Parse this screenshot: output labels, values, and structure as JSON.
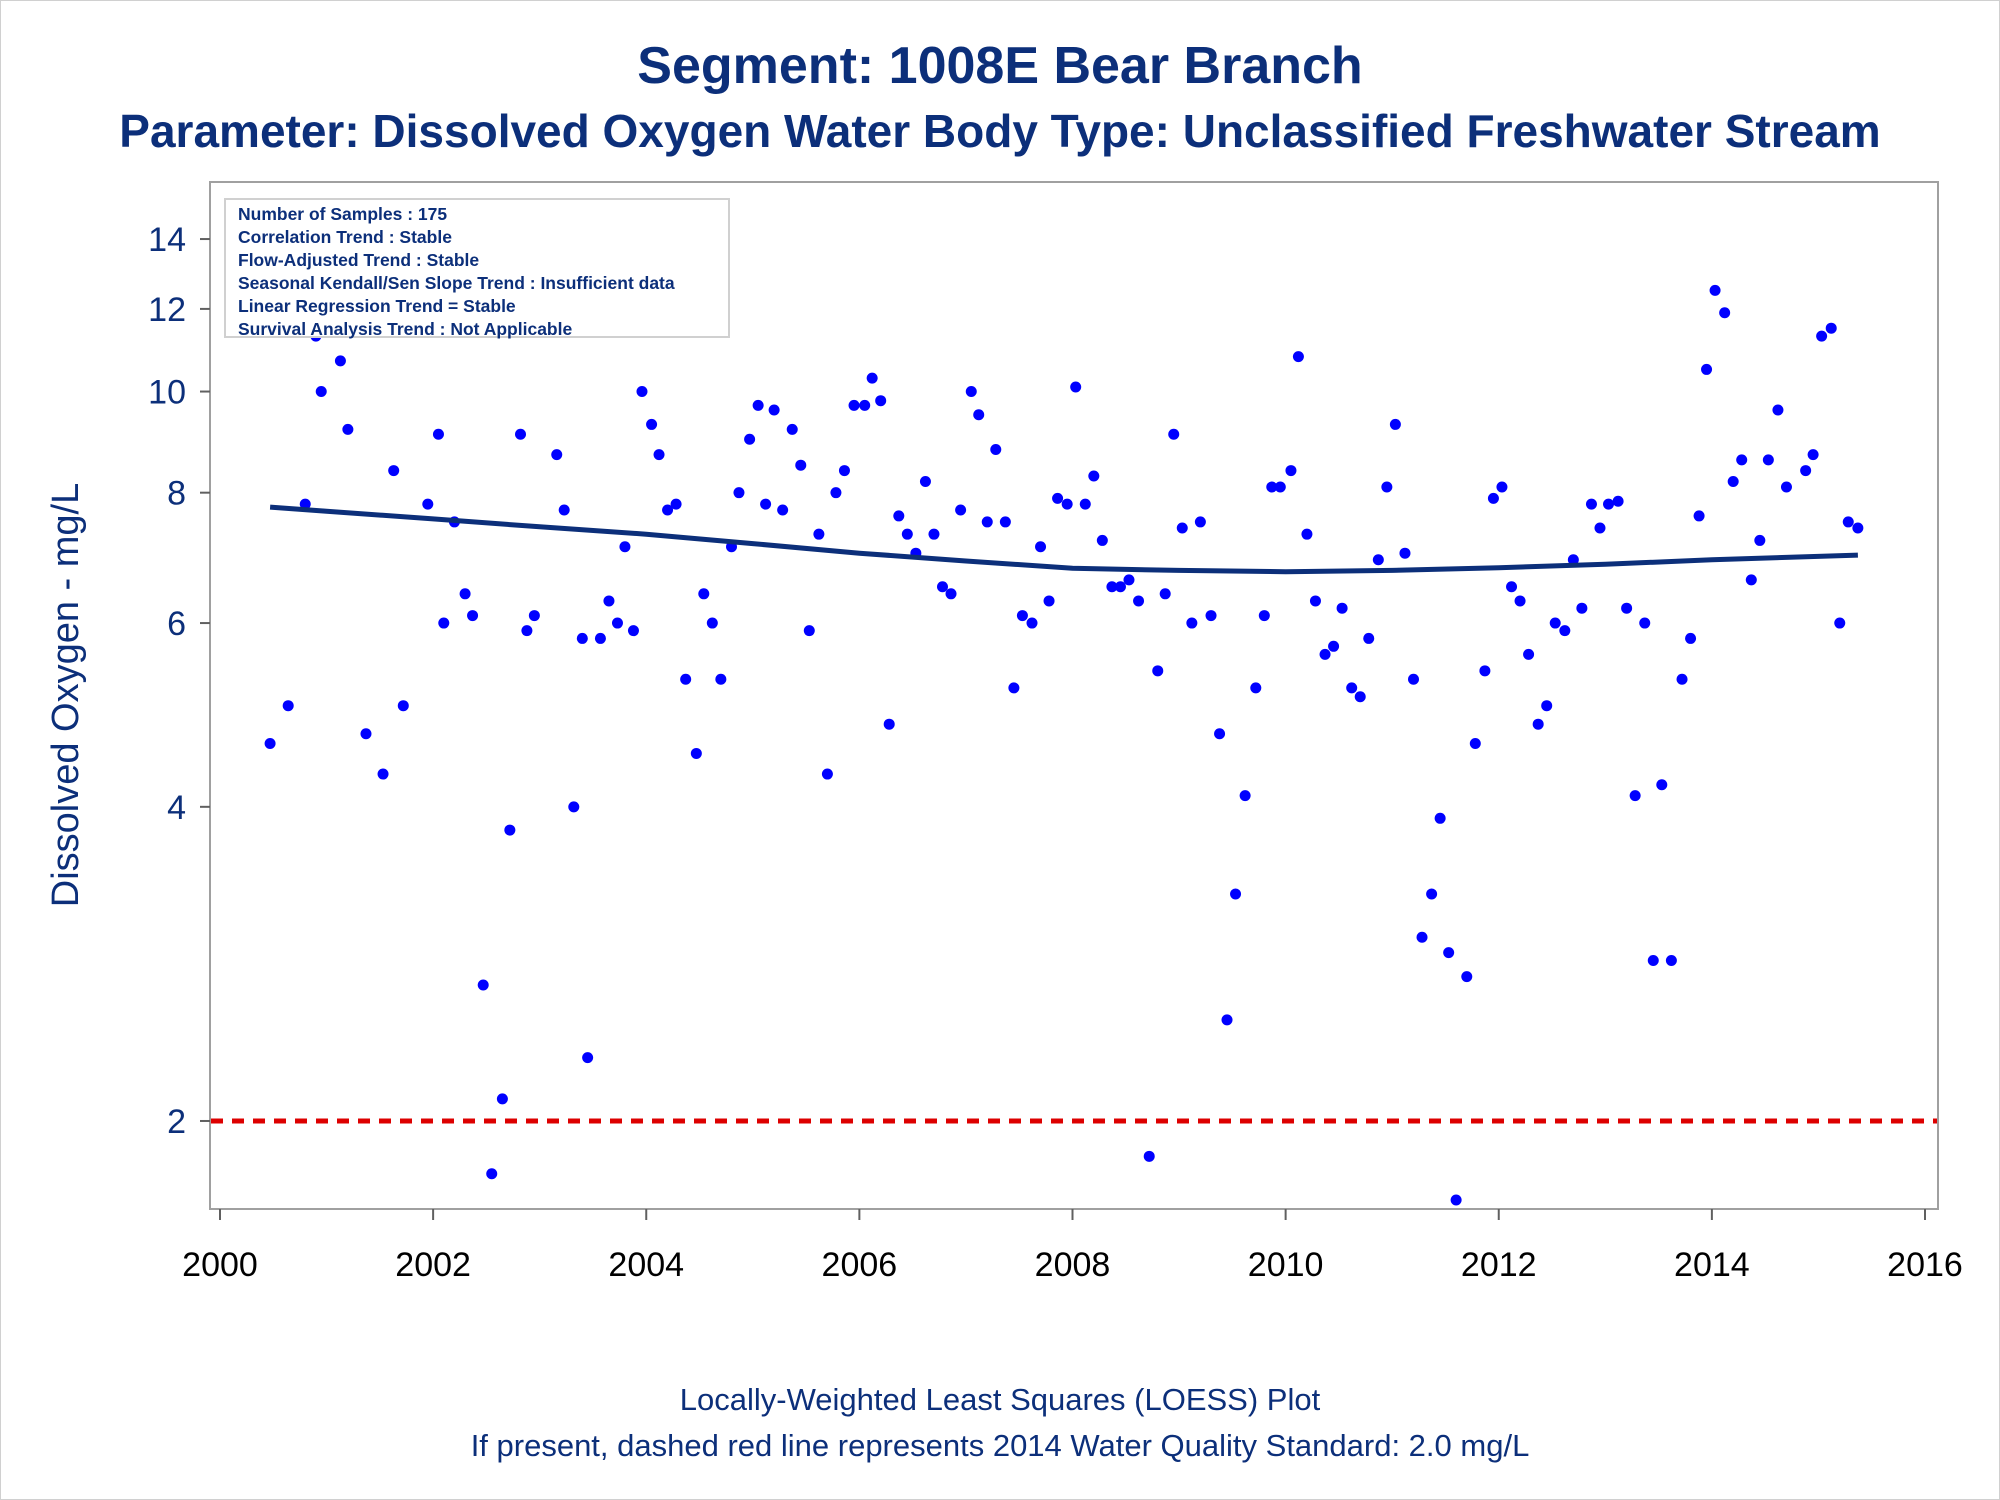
{
  "title": "Segment: 1008E  Bear Branch",
  "subtitle": "Parameter: Dissolved Oxygen   Water Body Type: Unclassified Freshwater Stream",
  "footnote_1": "Locally-Weighted Least Squares (LOESS) Plot",
  "footnote_2": "If present, dashed red line represents 2014 Water Quality Standard: 2.0 mg/L",
  "inset": {
    "lines": [
      "Number of Samples : 175",
      "Correlation Trend : Stable",
      "Flow-Adjusted Trend : Stable",
      "Seasonal Kendall/Sen Slope Trend : Insufficient data",
      "Linear Regression Trend = Stable",
      "Survival Analysis Trend : Not Applicable"
    ]
  },
  "colors": {
    "points": "#0000ff",
    "loess": "#0c2f7a",
    "standard_line": "#dd0000",
    "text": "#0c2f7a",
    "frame": "#a0a0a0"
  },
  "chart_data": {
    "type": "scatter",
    "title": "Segment: 1008E  Bear Branch",
    "subtitle": "Parameter: Dissolved Oxygen   Water Body Type: Unclassified Freshwater Stream",
    "xlabel": "",
    "ylabel": "Dissolved Oxygen - mg/L",
    "y_scale": "log",
    "xlim": [
      2000,
      2016
    ],
    "ylim": [
      1.68,
      15.6
    ],
    "xticks": [
      2000,
      2002,
      2004,
      2006,
      2008,
      2010,
      2012,
      2014,
      2016
    ],
    "yticks": [
      2,
      4,
      6,
      8,
      10,
      12,
      14
    ],
    "grid": false,
    "standard_line": {
      "y": 2.0,
      "style": "dashed",
      "color": "#dd0000"
    },
    "points": [
      [
        2000.47,
        4.6
      ],
      [
        2000.64,
        5.0
      ],
      [
        2000.8,
        7.8
      ],
      [
        2000.9,
        11.3
      ],
      [
        2000.95,
        10.0
      ],
      [
        2001.07,
        13.8
      ],
      [
        2001.13,
        10.7
      ],
      [
        2001.2,
        9.2
      ],
      [
        2001.37,
        4.7
      ],
      [
        2001.53,
        4.3
      ],
      [
        2001.63,
        8.4
      ],
      [
        2001.72,
        5.0
      ],
      [
        2001.78,
        12.7
      ],
      [
        2001.86,
        11.8
      ],
      [
        2001.95,
        7.8
      ],
      [
        2002.05,
        9.1
      ],
      [
        2002.1,
        6.0
      ],
      [
        2002.2,
        7.5
      ],
      [
        2002.3,
        6.4
      ],
      [
        2002.37,
        6.1
      ],
      [
        2002.47,
        2.7
      ],
      [
        2002.55,
        1.78
      ],
      [
        2002.65,
        2.1
      ],
      [
        2002.72,
        3.8
      ],
      [
        2002.82,
        9.1
      ],
      [
        2002.88,
        5.9
      ],
      [
        2002.95,
        6.1
      ],
      [
        2003.08,
        14.8
      ],
      [
        2003.16,
        8.7
      ],
      [
        2003.23,
        7.7
      ],
      [
        2003.32,
        4.0
      ],
      [
        2003.4,
        5.8
      ],
      [
        2003.45,
        2.3
      ],
      [
        2003.57,
        5.8
      ],
      [
        2003.65,
        6.3
      ],
      [
        2003.73,
        6.0
      ],
      [
        2003.8,
        7.1
      ],
      [
        2003.88,
        5.9
      ],
      [
        2003.96,
        10.0
      ],
      [
        2004.05,
        9.3
      ],
      [
        2004.12,
        8.7
      ],
      [
        2004.2,
        7.7
      ],
      [
        2004.28,
        7.8
      ],
      [
        2004.37,
        5.3
      ],
      [
        2004.47,
        4.5
      ],
      [
        2004.54,
        6.4
      ],
      [
        2004.62,
        6.0
      ],
      [
        2004.7,
        5.3
      ],
      [
        2004.8,
        7.1
      ],
      [
        2004.87,
        8.0
      ],
      [
        2004.97,
        9.0
      ],
      [
        2005.05,
        9.7
      ],
      [
        2005.12,
        7.8
      ],
      [
        2005.2,
        9.6
      ],
      [
        2005.28,
        7.7
      ],
      [
        2005.37,
        9.2
      ],
      [
        2005.45,
        8.5
      ],
      [
        2005.53,
        5.9
      ],
      [
        2005.62,
        7.3
      ],
      [
        2005.7,
        4.3
      ],
      [
        2005.78,
        8.0
      ],
      [
        2005.86,
        8.4
      ],
      [
        2005.95,
        9.7
      ],
      [
        2006.05,
        9.7
      ],
      [
        2006.12,
        10.3
      ],
      [
        2006.2,
        9.8
      ],
      [
        2006.28,
        4.8
      ],
      [
        2006.37,
        7.6
      ],
      [
        2006.45,
        7.3
      ],
      [
        2006.53,
        7.0
      ],
      [
        2006.62,
        8.2
      ],
      [
        2006.7,
        7.3
      ],
      [
        2006.78,
        6.5
      ],
      [
        2006.86,
        6.4
      ],
      [
        2006.95,
        7.7
      ],
      [
        2007.05,
        10.0
      ],
      [
        2007.12,
        9.5
      ],
      [
        2007.2,
        7.5
      ],
      [
        2007.28,
        8.8
      ],
      [
        2007.37,
        7.5
      ],
      [
        2007.45,
        5.2
      ],
      [
        2007.53,
        6.1
      ],
      [
        2007.62,
        6.0
      ],
      [
        2007.7,
        7.1
      ],
      [
        2007.78,
        6.3
      ],
      [
        2007.86,
        7.9
      ],
      [
        2007.95,
        7.8
      ],
      [
        2008.03,
        10.1
      ],
      [
        2008.12,
        7.8
      ],
      [
        2008.2,
        8.3
      ],
      [
        2008.28,
        7.2
      ],
      [
        2008.37,
        6.5
      ],
      [
        2008.45,
        6.5
      ],
      [
        2008.53,
        6.6
      ],
      [
        2008.62,
        6.3
      ],
      [
        2008.72,
        1.85
      ],
      [
        2008.8,
        5.4
      ],
      [
        2008.87,
        6.4
      ],
      [
        2008.95,
        9.1
      ],
      [
        2009.03,
        7.4
      ],
      [
        2009.12,
        6.0
      ],
      [
        2009.2,
        7.5
      ],
      [
        2009.3,
        6.1
      ],
      [
        2009.38,
        4.7
      ],
      [
        2009.45,
        2.5
      ],
      [
        2009.53,
        3.3
      ],
      [
        2009.62,
        4.1
      ],
      [
        2009.72,
        5.2
      ],
      [
        2009.8,
        6.1
      ],
      [
        2009.87,
        8.1
      ],
      [
        2009.95,
        8.1
      ],
      [
        2010.05,
        8.4
      ],
      [
        2010.12,
        10.8
      ],
      [
        2010.2,
        7.3
      ],
      [
        2010.28,
        6.3
      ],
      [
        2010.37,
        5.6
      ],
      [
        2010.45,
        5.7
      ],
      [
        2010.53,
        6.2
      ],
      [
        2010.62,
        5.2
      ],
      [
        2010.7,
        5.1
      ],
      [
        2010.78,
        5.8
      ],
      [
        2010.87,
        6.9
      ],
      [
        2010.95,
        8.1
      ],
      [
        2011.03,
        9.3
      ],
      [
        2011.12,
        7.0
      ],
      [
        2011.2,
        5.3
      ],
      [
        2011.28,
        3.0
      ],
      [
        2011.37,
        3.3
      ],
      [
        2011.45,
        3.9
      ],
      [
        2011.53,
        2.9
      ],
      [
        2011.6,
        1.68
      ],
      [
        2011.7,
        2.75
      ],
      [
        2011.78,
        4.6
      ],
      [
        2011.87,
        5.4
      ],
      [
        2011.95,
        7.9
      ],
      [
        2012.03,
        8.1
      ],
      [
        2012.12,
        6.5
      ],
      [
        2012.2,
        6.3
      ],
      [
        2012.28,
        5.6
      ],
      [
        2012.37,
        4.8
      ],
      [
        2012.45,
        5.0
      ],
      [
        2012.53,
        6.0
      ],
      [
        2012.62,
        5.9
      ],
      [
        2012.7,
        6.9
      ],
      [
        2012.78,
        6.2
      ],
      [
        2012.87,
        7.8
      ],
      [
        2012.95,
        7.4
      ],
      [
        2013.03,
        7.8
      ],
      [
        2013.12,
        7.85
      ],
      [
        2013.2,
        6.2
      ],
      [
        2013.28,
        4.1
      ],
      [
        2013.37,
        6.0
      ],
      [
        2013.45,
        2.85
      ],
      [
        2013.53,
        4.2
      ],
      [
        2013.62,
        2.85
      ],
      [
        2013.72,
        5.3
      ],
      [
        2013.8,
        5.8
      ],
      [
        2013.88,
        7.6
      ],
      [
        2013.95,
        10.5
      ],
      [
        2014.03,
        12.5
      ],
      [
        2014.12,
        11.9
      ],
      [
        2014.2,
        8.2
      ],
      [
        2014.28,
        8.6
      ],
      [
        2014.37,
        6.6
      ],
      [
        2014.45,
        7.2
      ],
      [
        2014.53,
        8.6
      ],
      [
        2014.62,
        9.6
      ],
      [
        2014.7,
        8.1
      ],
      [
        2014.88,
        8.4
      ],
      [
        2014.95,
        8.7
      ],
      [
        2015.03,
        11.3
      ],
      [
        2015.12,
        11.5
      ],
      [
        2015.2,
        6.0
      ],
      [
        2015.28,
        7.5
      ],
      [
        2015.37,
        7.4
      ]
    ],
    "loess": [
      [
        2000.47,
        7.75
      ],
      [
        2001.0,
        7.68
      ],
      [
        2002.0,
        7.55
      ],
      [
        2003.0,
        7.42
      ],
      [
        2004.0,
        7.3
      ],
      [
        2005.0,
        7.15
      ],
      [
        2006.0,
        7.0
      ],
      [
        2007.0,
        6.88
      ],
      [
        2008.0,
        6.77
      ],
      [
        2009.0,
        6.74
      ],
      [
        2010.0,
        6.72
      ],
      [
        2011.0,
        6.74
      ],
      [
        2012.0,
        6.78
      ],
      [
        2013.0,
        6.83
      ],
      [
        2014.0,
        6.9
      ],
      [
        2015.37,
        6.97
      ]
    ]
  }
}
